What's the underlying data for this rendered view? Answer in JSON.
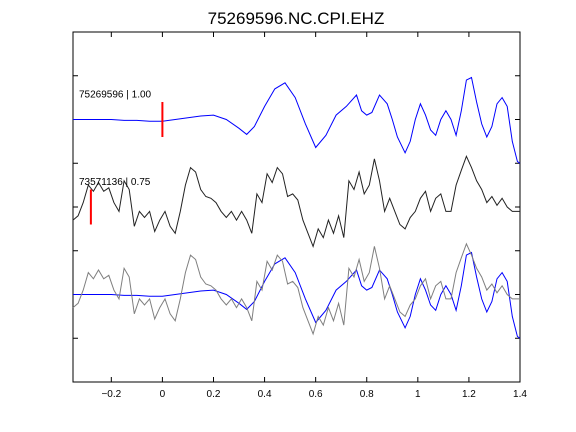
{
  "figure": {
    "title": "75269596.NC.CPI.EHZ",
    "background": "#ffffff"
  },
  "chart_data": {
    "type": "line",
    "title": "75269596.NC.CPI.EHZ",
    "xlabel": "",
    "ylabel": "",
    "xlim": [
      -0.35,
      1.4
    ],
    "xticks": [
      -0.2,
      0,
      0.2,
      0.4,
      0.6,
      0.8,
      1,
      1.2,
      1.4
    ],
    "xtick_labels": [
      "−0.2",
      "0",
      "0.2",
      "0.4",
      "0.6",
      "0.8",
      "1",
      "1.2",
      "1.4"
    ],
    "ylim": [
      -0.5,
      3.5
    ],
    "yticks": [
      0,
      0.5,
      1,
      1.5,
      2,
      2.5,
      3
    ],
    "grid": false,
    "colors": {
      "blue": "#0000ff",
      "black": "#222222",
      "gray": "#7f7f7f",
      "pick": "#ff0000"
    },
    "traces": [
      {
        "label": "75269596 | 1.00",
        "offset": 2.5,
        "pick_time": 0.0,
        "color": "blue",
        "x": [
          -0.35,
          -0.3,
          -0.25,
          -0.2,
          -0.15,
          -0.1,
          -0.05,
          0.0,
          0.05,
          0.1,
          0.15,
          0.2,
          0.25,
          0.3,
          0.33,
          0.36,
          0.4,
          0.44,
          0.48,
          0.52,
          0.56,
          0.6,
          0.64,
          0.68,
          0.72,
          0.76,
          0.78,
          0.8,
          0.82,
          0.85,
          0.88,
          0.9,
          0.92,
          0.95,
          0.97,
          0.99,
          1.01,
          1.03,
          1.05,
          1.07,
          1.09,
          1.11,
          1.13,
          1.15,
          1.17,
          1.19,
          1.21,
          1.23,
          1.25,
          1.27,
          1.29,
          1.31,
          1.33,
          1.35,
          1.37,
          1.39,
          1.4
        ],
        "y": [
          0.0,
          0.0,
          0.0,
          0.0,
          -0.01,
          -0.01,
          -0.02,
          -0.02,
          0.0,
          0.02,
          0.04,
          0.05,
          0.0,
          -0.1,
          -0.17,
          -0.08,
          0.15,
          0.35,
          0.42,
          0.25,
          -0.05,
          -0.32,
          -0.18,
          0.05,
          0.15,
          0.28,
          0.1,
          0.05,
          0.08,
          0.28,
          0.18,
          0.0,
          -0.2,
          -0.38,
          -0.25,
          0.0,
          0.18,
          0.05,
          -0.12,
          -0.18,
          0.0,
          0.1,
          0.0,
          -0.18,
          0.1,
          0.45,
          0.48,
          0.2,
          -0.05,
          -0.2,
          -0.08,
          0.18,
          0.25,
          0.15,
          -0.25,
          -0.48,
          -0.5
        ]
      },
      {
        "label": "73571136 | 0.75",
        "offset": 1.5,
        "pick_time": -0.28,
        "color": "black",
        "x": [
          -0.35,
          -0.33,
          -0.31,
          -0.29,
          -0.27,
          -0.25,
          -0.23,
          -0.21,
          -0.19,
          -0.17,
          -0.15,
          -0.13,
          -0.11,
          -0.09,
          -0.07,
          -0.05,
          -0.03,
          -0.01,
          0.01,
          0.03,
          0.05,
          0.07,
          0.09,
          0.11,
          0.13,
          0.15,
          0.17,
          0.19,
          0.21,
          0.23,
          0.25,
          0.27,
          0.29,
          0.31,
          0.33,
          0.35,
          0.37,
          0.39,
          0.41,
          0.43,
          0.45,
          0.47,
          0.49,
          0.51,
          0.53,
          0.55,
          0.57,
          0.59,
          0.61,
          0.63,
          0.65,
          0.67,
          0.69,
          0.71,
          0.73,
          0.75,
          0.77,
          0.79,
          0.81,
          0.83,
          0.85,
          0.87,
          0.89,
          0.91,
          0.93,
          0.95,
          0.97,
          0.99,
          1.01,
          1.03,
          1.05,
          1.07,
          1.09,
          1.11,
          1.13,
          1.15,
          1.17,
          1.19,
          1.21,
          1.23,
          1.25,
          1.27,
          1.29,
          1.31,
          1.33,
          1.35,
          1.37,
          1.39,
          1.4
        ],
        "y": [
          -0.15,
          -0.1,
          0.05,
          0.25,
          0.18,
          0.28,
          0.18,
          0.22,
          0.05,
          -0.05,
          0.3,
          0.2,
          -0.22,
          -0.05,
          -0.12,
          -0.05,
          -0.28,
          -0.15,
          -0.05,
          -0.22,
          -0.3,
          -0.05,
          0.25,
          0.45,
          0.4,
          0.2,
          0.12,
          0.1,
          0.05,
          -0.05,
          -0.12,
          -0.05,
          -0.15,
          -0.05,
          -0.15,
          -0.3,
          0.15,
          0.05,
          0.38,
          0.28,
          0.45,
          0.38,
          0.12,
          0.15,
          0.08,
          -0.15,
          -0.3,
          -0.45,
          -0.25,
          -0.35,
          -0.15,
          -0.3,
          -0.1,
          -0.35,
          0.3,
          0.2,
          0.4,
          0.15,
          0.25,
          0.55,
          0.3,
          -0.05,
          0.1,
          -0.05,
          -0.2,
          -0.25,
          -0.12,
          -0.05,
          0.1,
          0.18,
          -0.05,
          0.1,
          0.15,
          -0.05,
          -0.05,
          0.25,
          0.42,
          0.58,
          0.45,
          0.3,
          0.2,
          0.05,
          0.12,
          0.02,
          0.1,
          0.0,
          -0.05,
          -0.05,
          -0.05
        ]
      }
    ],
    "overlay": {
      "offset": 0.5,
      "series": [
        {
          "name_ref": 0,
          "color": "blue"
        },
        {
          "name_ref": 1,
          "color": "gray"
        }
      ]
    }
  }
}
